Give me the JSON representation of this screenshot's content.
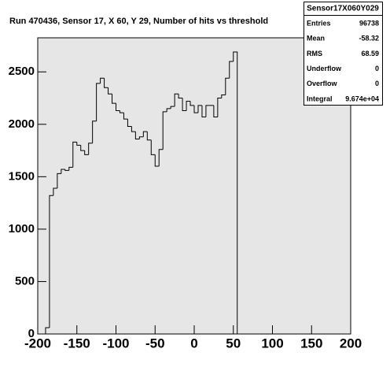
{
  "chart_data": {
    "type": "histogram",
    "title": "Run 470436, Sensor 17, X 60, Y 29, Number of hits vs threshold",
    "bins": [
      -190,
      -185,
      -180,
      -175,
      -170,
      -165,
      -160,
      -155,
      -150,
      -145,
      -140,
      -135,
      -130,
      -125,
      -120,
      -115,
      -110,
      -105,
      -100,
      -95,
      -90,
      -85,
      -80,
      -75,
      -70,
      -65,
      -60,
      -55,
      -50,
      -45,
      -40,
      -35,
      -30,
      -25,
      -20,
      -15,
      -10,
      -5,
      0,
      5,
      10,
      15,
      20,
      25,
      30,
      35,
      40,
      45,
      50,
      55
    ],
    "values": [
      60,
      1320,
      1390,
      1530,
      1570,
      1560,
      1590,
      1830,
      1800,
      1750,
      1710,
      1820,
      2030,
      2390,
      2440,
      2350,
      2290,
      2200,
      2130,
      2110,
      2050,
      1980,
      1930,
      1860,
      1880,
      1930,
      1850,
      1710,
      1600,
      1760,
      2120,
      2150,
      2170,
      2290,
      2250,
      2130,
      2220,
      2180,
      2110,
      2180,
      2070,
      2180,
      2180,
      2070,
      2250,
      2280,
      2440,
      2600,
      2690
    ],
    "color": "#000000",
    "xlim": [
      -200,
      200
    ],
    "xticks": [
      -200,
      -150,
      -100,
      -50,
      0,
      50,
      100,
      150,
      200
    ],
    "ylim": [
      0,
      2825
    ],
    "yticks": [
      0,
      500,
      1000,
      1500,
      2000,
      2500
    ],
    "stats": {
      "title": "Sensor17X060Y029",
      "rows": [
        [
          "Entries",
          96738
        ],
        [
          "Mean",
          -58.32
        ],
        [
          "RMS",
          68.59
        ],
        [
          "Underflow",
          0
        ],
        [
          "Overflow",
          0
        ],
        [
          "Integral",
          "9.674e+04"
        ]
      ]
    }
  }
}
